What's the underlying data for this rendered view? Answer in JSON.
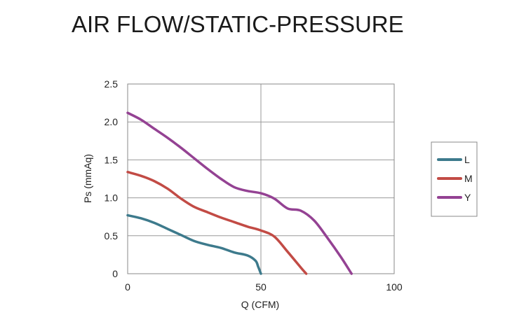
{
  "title": "AIR FLOW/STATIC-PRESSURE",
  "chart_data": {
    "type": "line",
    "xlabel": "Q (CFM)",
    "ylabel": "Ps (mmAq)",
    "xlim": [
      0,
      100
    ],
    "ylim": [
      0,
      2.5
    ],
    "x_ticks": [
      "0",
      "50",
      "100"
    ],
    "y_ticks": [
      "0",
      "0.5",
      "1.0",
      "1.5",
      "2.0",
      "2.5"
    ],
    "x_tick_values": [
      0,
      50,
      100
    ],
    "y_tick_values": [
      0,
      0.5,
      1.0,
      1.5,
      2.0,
      2.5
    ],
    "grid": true,
    "legend_position": "right",
    "series": [
      {
        "name": "L",
        "color": "#3d7a8c",
        "x": [
          0,
          5,
          10,
          15,
          20,
          25,
          30,
          35,
          40,
          45,
          48,
          49,
          50
        ],
        "y": [
          0.77,
          0.73,
          0.67,
          0.59,
          0.51,
          0.43,
          0.38,
          0.34,
          0.28,
          0.24,
          0.17,
          0.09,
          0.0
        ]
      },
      {
        "name": "M",
        "color": "#c24b45",
        "x": [
          0,
          5,
          10,
          15,
          20,
          25,
          30,
          35,
          40,
          45,
          50,
          55,
          60,
          65,
          67
        ],
        "y": [
          1.34,
          1.29,
          1.22,
          1.12,
          0.99,
          0.88,
          0.81,
          0.74,
          0.68,
          0.62,
          0.57,
          0.49,
          0.29,
          0.08,
          0.0
        ]
      },
      {
        "name": "Y",
        "color": "#944293",
        "x": [
          0,
          5,
          10,
          15,
          20,
          25,
          30,
          35,
          40,
          45,
          50,
          55,
          60,
          65,
          70,
          75,
          80,
          84
        ],
        "y": [
          2.12,
          2.03,
          1.91,
          1.79,
          1.66,
          1.52,
          1.38,
          1.25,
          1.14,
          1.09,
          1.06,
          0.99,
          0.86,
          0.83,
          0.7,
          0.47,
          0.22,
          0.0
        ]
      }
    ]
  }
}
